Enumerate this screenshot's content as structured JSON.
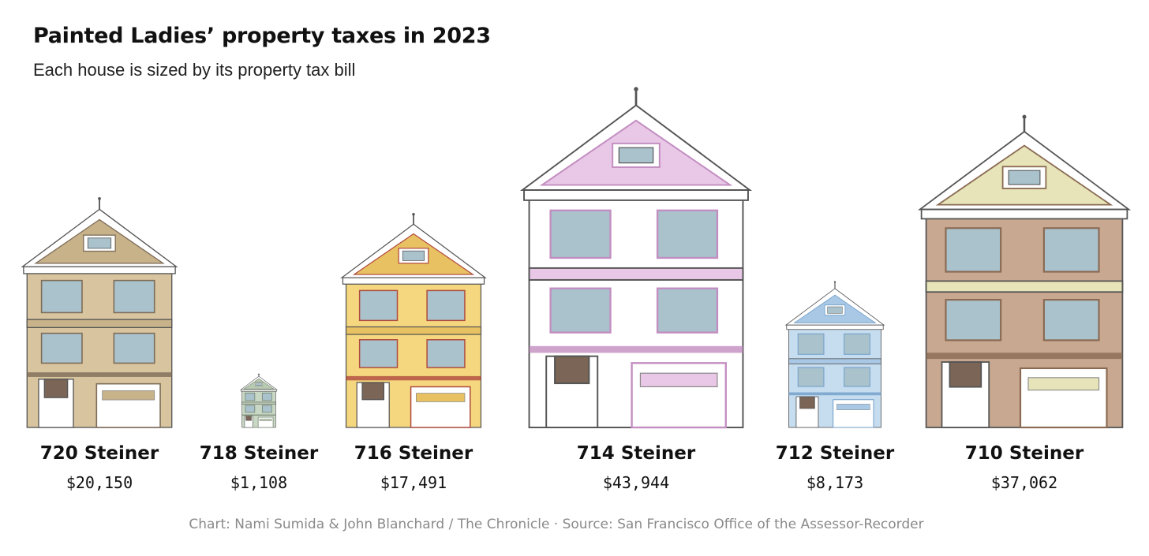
{
  "title": "Painted Ladies’ property taxes in 2023",
  "subtitle": "Each house is sized by its property tax bill",
  "credit": "Chart: Nami Sumida & John Blanchard / The Chronicle · Source: San Francisco Office of the Assessor-Recorder",
  "chart_data": {
    "type": "bar",
    "mark": "house-illustration",
    "categories": [
      "720 Steiner",
      "718 Steiner",
      "716 Steiner",
      "714 Steiner",
      "712 Steiner",
      "710 Steiner"
    ],
    "values": [
      20150,
      1108,
      17491,
      43944,
      8173,
      37062
    ],
    "value_labels": [
      "$20,150",
      "$1,108",
      "$17,491",
      "$43,944",
      "$8,173",
      "$37,062"
    ],
    "title": "Painted Ladies’ property taxes in 2023",
    "subtitle": "Each house is sized by its property tax bill",
    "xlabel": "",
    "ylabel": "",
    "grid": false,
    "legend": "none",
    "colors": [
      {
        "body": "#d8c49e",
        "trim": "#7d6c58",
        "accent": "#c8b28a"
      },
      {
        "body": "#c9d8c4",
        "trim": "#6d7d6a",
        "accent": "#b9cab2"
      },
      {
        "body": "#f4d77e",
        "trim": "#b04a3e",
        "accent": "#e8c262"
      },
      {
        "body": "#ffffff",
        "trim": "#c28dc0",
        "accent": "#e8c8e6"
      },
      {
        "body": "#c6dcef",
        "trim": "#6f9ec8",
        "accent": "#a9c8e6"
      },
      {
        "body": "#c8a890",
        "trim": "#8a6a52",
        "accent": "#e6e4b8"
      }
    ]
  }
}
